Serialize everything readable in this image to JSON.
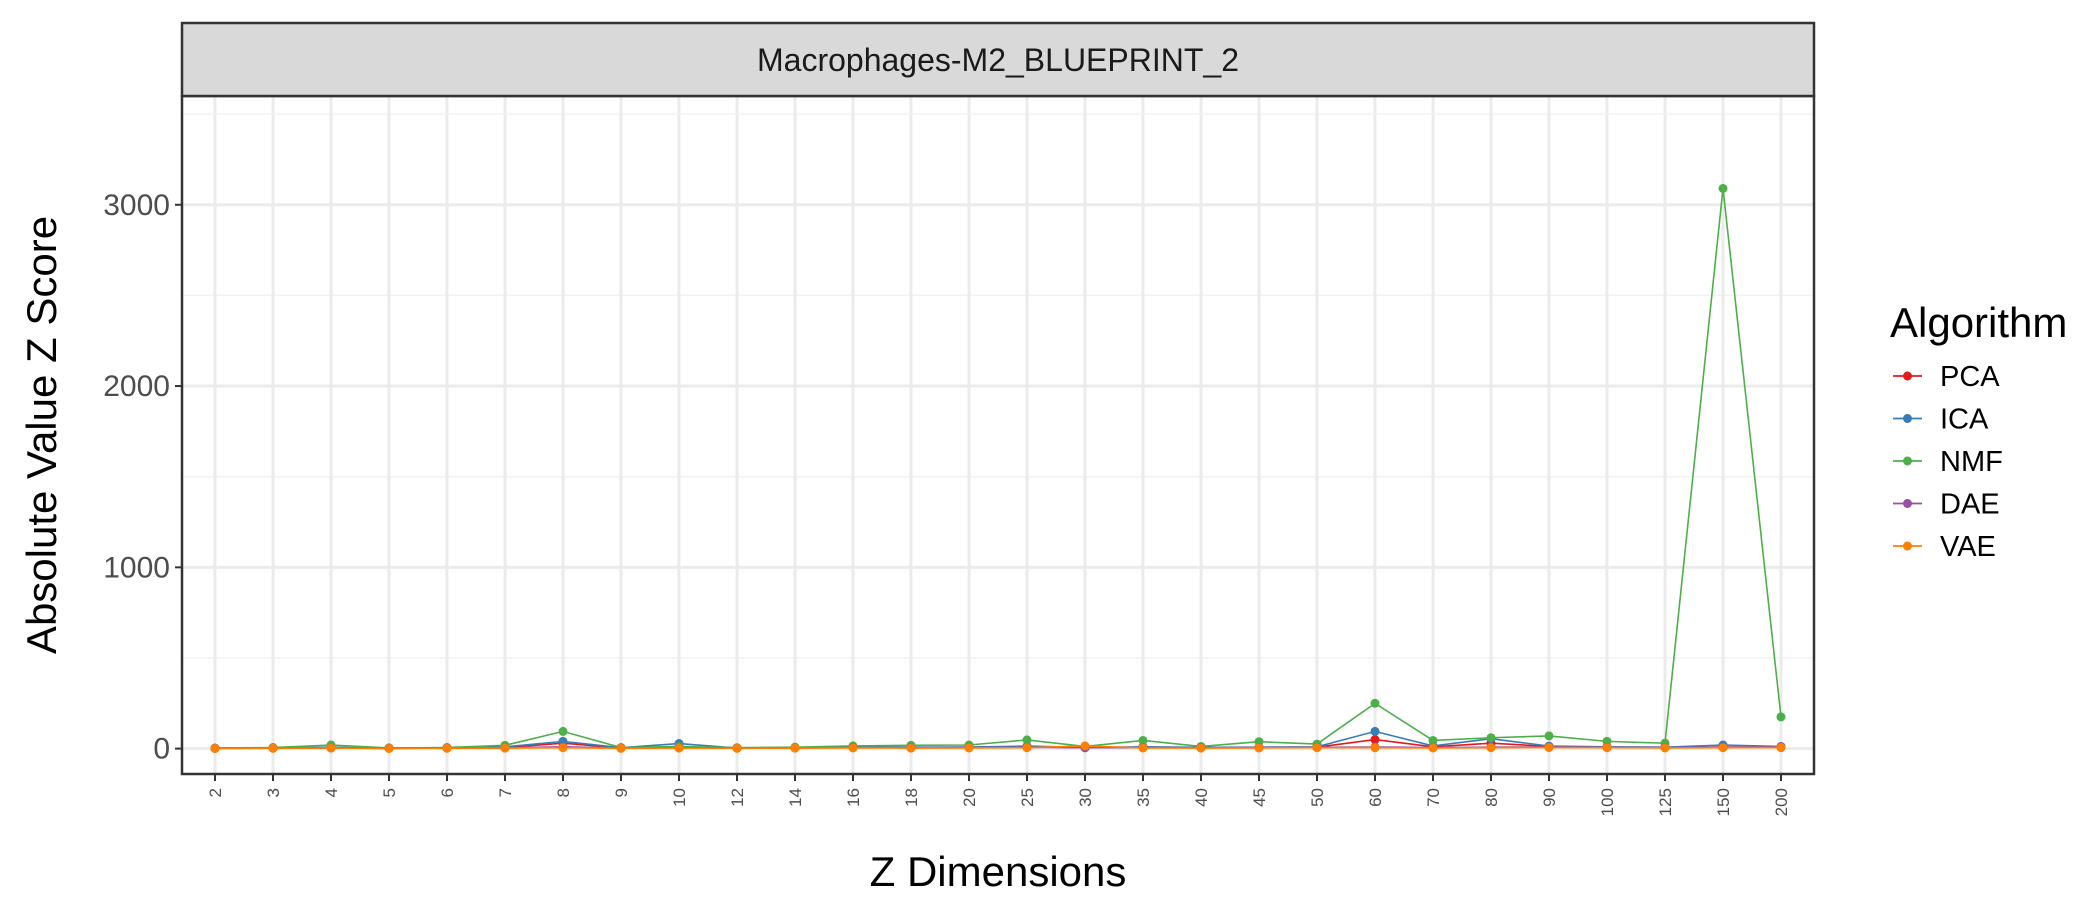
{
  "chart_data": {
    "type": "line",
    "title": "Macrophages-M2_BLUEPRINT_2",
    "xlabel": "Z Dimensions",
    "ylabel": "Absolute Value Z Score",
    "categories": [
      "2",
      "3",
      "4",
      "5",
      "6",
      "7",
      "8",
      "9",
      "10",
      "12",
      "14",
      "16",
      "18",
      "20",
      "25",
      "30",
      "35",
      "40",
      "45",
      "50",
      "60",
      "70",
      "80",
      "90",
      "100",
      "125",
      "150",
      "200"
    ],
    "ylim": [
      -140,
      3600
    ],
    "yticks": [
      0,
      1000,
      2000,
      3000
    ],
    "ytick_labels": [
      "0",
      "1000",
      "2000",
      "3000"
    ],
    "grid": true,
    "legend": {
      "title": "Algorithm",
      "position": "right"
    },
    "series": [
      {
        "name": "PCA",
        "color": "#e41a1c",
        "values": [
          2,
          3,
          5,
          2,
          3,
          6,
          30,
          4,
          8,
          3,
          4,
          7,
          6,
          8,
          10,
          5,
          8,
          6,
          5,
          8,
          50,
          10,
          30,
          12,
          8,
          6,
          9,
          7
        ]
      },
      {
        "name": "ICA",
        "color": "#377eb8",
        "values": [
          3,
          4,
          8,
          3,
          5,
          10,
          40,
          5,
          28,
          3,
          5,
          9,
          8,
          9,
          14,
          6,
          10,
          7,
          8,
          10,
          95,
          15,
          55,
          14,
          10,
          8,
          20,
          12
        ]
      },
      {
        "name": "NMF",
        "color": "#4daf4a",
        "values": [
          3,
          6,
          20,
          4,
          6,
          18,
          95,
          6,
          12,
          5,
          8,
          15,
          18,
          20,
          48,
          12,
          45,
          12,
          38,
          25,
          250,
          45,
          60,
          70,
          40,
          30,
          3090,
          175
        ]
      },
      {
        "name": "DAE",
        "color": "#984ea3",
        "values": [
          2,
          3,
          4,
          2,
          3,
          4,
          10,
          3,
          5,
          3,
          4,
          6,
          5,
          6,
          7,
          5,
          6,
          5,
          6,
          7,
          9,
          6,
          8,
          9,
          7,
          6,
          8,
          10
        ]
      },
      {
        "name": "VAE",
        "color": "#ff7f00",
        "values": [
          1,
          2,
          3,
          1,
          2,
          3,
          5,
          2,
          3,
          2,
          3,
          4,
          3,
          4,
          5,
          15,
          4,
          3,
          4,
          5,
          5,
          4,
          5,
          6,
          5,
          4,
          5,
          6
        ]
      }
    ]
  }
}
